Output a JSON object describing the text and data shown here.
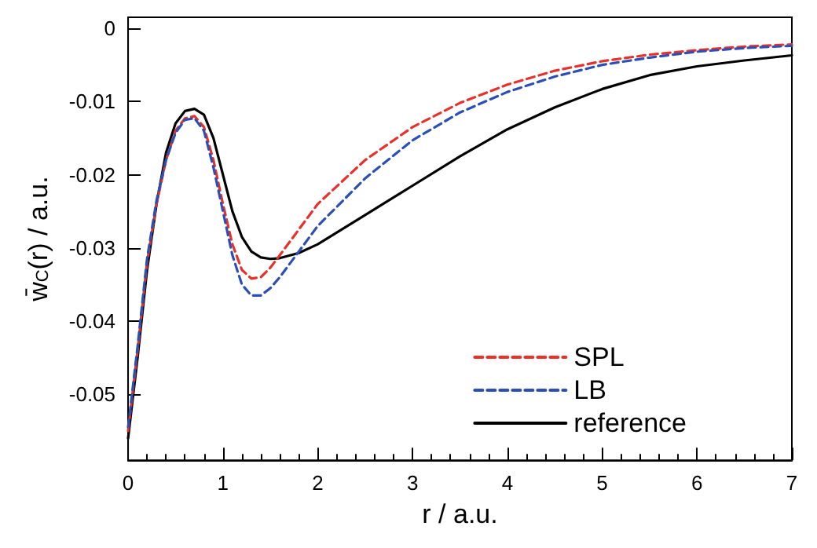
{
  "chart_data": {
    "type": "line",
    "xlabel": "r / a.u.",
    "ylabel": "w̄$_{C}$(r) / a.u.",
    "xlim": [
      0,
      7
    ],
    "xticks": [
      0,
      1,
      2,
      3,
      4,
      5,
      6,
      7
    ],
    "ylim": [
      -0.059,
      0.0015
    ],
    "yticks": [
      -0.05,
      -0.04,
      -0.03,
      -0.02,
      -0.01,
      0
    ],
    "grid": false,
    "legend": "bottom right",
    "marker": "none",
    "x": [
      0,
      0.1,
      0.2,
      0.3,
      0.4,
      0.5,
      0.6,
      0.7,
      0.8,
      0.9,
      1.0,
      1.1,
      1.2,
      1.3,
      1.4,
      1.5,
      1.6,
      1.8,
      2.0,
      2.5,
      3,
      3.5,
      4,
      4.5,
      5,
      5.5,
      6,
      6.5,
      7
    ],
    "series": [
      {
        "name": "SPL",
        "color": "#e8312a",
        "line_style": "dashed",
        "values": [
          -0.055,
          -0.044,
          -0.032,
          -0.024,
          -0.018,
          -0.014,
          -0.0123,
          -0.012,
          -0.0135,
          -0.018,
          -0.024,
          -0.0295,
          -0.033,
          -0.0342,
          -0.034,
          -0.0327,
          -0.031,
          -0.0275,
          -0.024,
          -0.018,
          -0.0135,
          -0.0102,
          -0.0077,
          -0.0058,
          -0.0045,
          -0.0036,
          -0.003,
          -0.0025,
          -0.0022
        ]
      },
      {
        "name": "LB",
        "color": "#2b4fb5",
        "line_style": "dashed",
        "values": [
          -0.0545,
          -0.0435,
          -0.0315,
          -0.0235,
          -0.018,
          -0.0143,
          -0.0125,
          -0.0123,
          -0.014,
          -0.019,
          -0.025,
          -0.031,
          -0.035,
          -0.0365,
          -0.0365,
          -0.0355,
          -0.034,
          -0.0305,
          -0.027,
          -0.0205,
          -0.0153,
          -0.0115,
          -0.0087,
          -0.0066,
          -0.005,
          -0.004,
          -0.0032,
          -0.0027,
          -0.0024
        ]
      },
      {
        "name": "reference",
        "color": "#000000",
        "line_style": "solid",
        "values": [
          -0.056,
          -0.045,
          -0.033,
          -0.024,
          -0.017,
          -0.013,
          -0.0113,
          -0.011,
          -0.0118,
          -0.015,
          -0.02,
          -0.025,
          -0.0285,
          -0.0305,
          -0.0313,
          -0.0315,
          -0.0314,
          -0.0307,
          -0.0295,
          -0.0255,
          -0.0215,
          -0.0175,
          -0.0138,
          -0.0108,
          -0.0083,
          -0.0064,
          -0.0052,
          -0.0044,
          -0.0037
        ]
      }
    ]
  }
}
